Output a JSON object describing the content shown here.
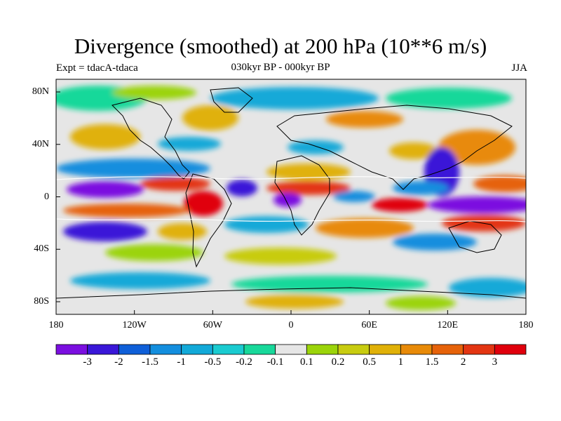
{
  "title": "Divergence (smoothed) at 200 hPa (10**6 m/s)",
  "left_subtitle": "Expt = tdacA-tdaca",
  "center_subtitle": "030kyr BP - 000kyr BP",
  "right_subtitle": "JJA",
  "map": {
    "lat_ticks": [
      "80N",
      "40N",
      "0",
      "40S",
      "80S"
    ],
    "lon_ticks": [
      "180",
      "120W",
      "60W",
      "0",
      "60E",
      "120E",
      "180"
    ]
  },
  "colorbar": {
    "labels": [
      "-3",
      "-2",
      "-1.5",
      "-1",
      "-0.5",
      "-0.2",
      "-0.1",
      "0.1",
      "0.2",
      "0.5",
      "1",
      "1.5",
      "2",
      "3"
    ],
    "colors": [
      "#7b0fe0",
      "#3a17d8",
      "#0f5fd8",
      "#138ede",
      "#12a9d8",
      "#1acbd0",
      "#18d89a",
      "#e6e6e6",
      "#9bd40a",
      "#c8cc10",
      "#e0b108",
      "#e88a08",
      "#e6620a",
      "#e33512",
      "#e0000c"
    ]
  },
  "colors": {
    "land_outline": "#000000",
    "no_data": "#e6e6e6"
  }
}
